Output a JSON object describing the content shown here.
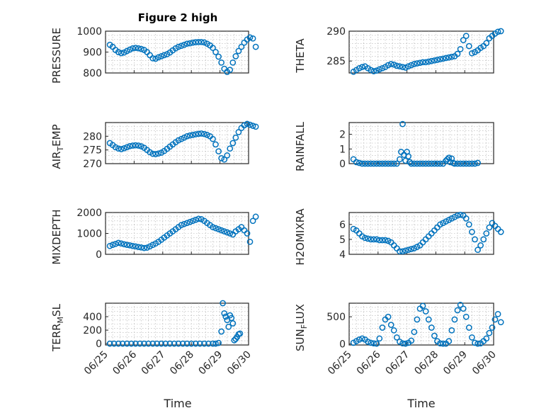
{
  "figure": {
    "title": "Figure 2 high",
    "marker_color": "#0072BD",
    "x_tick_labels": [
      "06/25",
      "06/26",
      "06/27",
      "06/28",
      "06/29",
      "06/30"
    ],
    "xlabel": "Time"
  },
  "chart_data": [
    {
      "type": "scatter",
      "title": "Figure 2 high",
      "ylabel": "PRESSURE",
      "ylim": [
        800,
        1000
      ],
      "yticks": [
        800,
        900,
        1000
      ],
      "xlim": [
        0,
        5
      ],
      "grid": true,
      "x": [
        0.15,
        0.25,
        0.35,
        0.45,
        0.55,
        0.65,
        0.75,
        0.85,
        0.95,
        1.05,
        1.15,
        1.25,
        1.35,
        1.45,
        1.55,
        1.65,
        1.75,
        1.85,
        1.95,
        2.05,
        2.15,
        2.25,
        2.35,
        2.45,
        2.55,
        2.65,
        2.75,
        2.85,
        2.95,
        3.05,
        3.15,
        3.25,
        3.35,
        3.45,
        3.55,
        3.65,
        3.75,
        3.85,
        3.95,
        4.05,
        4.15,
        4.25,
        4.35,
        4.45,
        4.55,
        4.65,
        4.75,
        4.85,
        4.95,
        5.05,
        5.15,
        5.25
      ],
      "y": [
        935,
        925,
        910,
        900,
        895,
        898,
        905,
        912,
        918,
        920,
        918,
        915,
        910,
        900,
        885,
        870,
        868,
        875,
        880,
        885,
        890,
        898,
        908,
        918,
        925,
        930,
        935,
        940,
        942,
        945,
        947,
        948,
        948,
        946,
        940,
        932,
        920,
        900,
        878,
        850,
        820,
        805,
        815,
        850,
        880,
        905,
        925,
        945,
        960,
        970,
        965,
        925
      ]
    },
    {
      "type": "scatter",
      "ylabel": "THETA",
      "ylim": [
        283,
        290
      ],
      "yticks": [
        285,
        290
      ],
      "xlim": [
        0,
        5
      ],
      "grid": true,
      "x": [
        0.15,
        0.25,
        0.35,
        0.45,
        0.55,
        0.65,
        0.75,
        0.85,
        0.95,
        1.05,
        1.15,
        1.25,
        1.35,
        1.45,
        1.55,
        1.65,
        1.75,
        1.85,
        1.95,
        2.05,
        2.15,
        2.25,
        2.35,
        2.45,
        2.55,
        2.65,
        2.75,
        2.85,
        2.95,
        3.05,
        3.15,
        3.25,
        3.35,
        3.45,
        3.55,
        3.65,
        3.75,
        3.85,
        3.95,
        4.05,
        4.15,
        4.25,
        4.35,
        4.45,
        4.55,
        4.65,
        4.75,
        4.85,
        4.95,
        5.05,
        5.15,
        5.25
      ],
      "y": [
        283.2,
        283.5,
        283.8,
        284.0,
        284.1,
        283.8,
        283.5,
        283.3,
        283.4,
        283.6,
        283.8,
        284.0,
        284.3,
        284.5,
        284.4,
        284.2,
        284.1,
        284.0,
        283.9,
        284.1,
        284.3,
        284.5,
        284.6,
        284.7,
        284.8,
        284.8,
        284.9,
        285.0,
        285.1,
        285.2,
        285.3,
        285.4,
        285.5,
        285.6,
        285.7,
        285.8,
        286.2,
        287.0,
        288.5,
        289.2,
        287.5,
        286.3,
        286.5,
        286.8,
        287.2,
        287.5,
        288.0,
        288.8,
        289.2,
        289.6,
        289.9,
        290.0
      ]
    },
    {
      "type": "scatter",
      "ylabel": "AIR_TEMP",
      "ylim": [
        270,
        285
      ],
      "yticks": [
        270,
        275,
        280
      ],
      "xlim": [
        0,
        5
      ],
      "grid": true,
      "x": [
        0.15,
        0.25,
        0.35,
        0.45,
        0.55,
        0.65,
        0.75,
        0.85,
        0.95,
        1.05,
        1.15,
        1.25,
        1.35,
        1.45,
        1.55,
        1.65,
        1.75,
        1.85,
        1.95,
        2.05,
        2.15,
        2.25,
        2.35,
        2.45,
        2.55,
        2.65,
        2.75,
        2.85,
        2.95,
        3.05,
        3.15,
        3.25,
        3.35,
        3.45,
        3.55,
        3.65,
        3.75,
        3.85,
        3.95,
        4.05,
        4.15,
        4.25,
        4.35,
        4.45,
        4.55,
        4.65,
        4.75,
        4.85,
        4.95,
        5.05,
        5.15,
        5.25
      ],
      "y": [
        277.5,
        276.8,
        276.0,
        275.5,
        275.3,
        275.6,
        276.0,
        276.4,
        276.6,
        276.7,
        276.6,
        276.3,
        275.8,
        275.0,
        274.2,
        273.6,
        273.5,
        273.7,
        274.0,
        274.6,
        275.4,
        276.2,
        277.0,
        277.8,
        278.5,
        279.0,
        279.5,
        280.0,
        280.3,
        280.5,
        280.7,
        280.9,
        281.0,
        280.8,
        280.5,
        280.0,
        279.0,
        277.0,
        274.5,
        272.0,
        271.5,
        273.0,
        275.5,
        277.5,
        279.5,
        281.5,
        283.0,
        284.0,
        284.5,
        284.2,
        283.8,
        283.5
      ]
    },
    {
      "type": "scatter",
      "ylabel": "RAINFALL",
      "ylim": [
        0,
        2.8
      ],
      "yticks": [
        0,
        1,
        2
      ],
      "xlim": [
        0,
        5
      ],
      "grid": true,
      "x": [
        0.15,
        0.25,
        0.35,
        0.45,
        0.55,
        0.65,
        0.75,
        0.85,
        0.95,
        1.05,
        1.15,
        1.25,
        1.35,
        1.45,
        1.55,
        1.65,
        1.75,
        1.8,
        1.85,
        1.9,
        1.95,
        2.0,
        2.05,
        2.1,
        2.15,
        2.25,
        2.35,
        2.45,
        2.55,
        2.65,
        2.75,
        2.85,
        2.95,
        3.05,
        3.15,
        3.25,
        3.35,
        3.4,
        3.45,
        3.5,
        3.55,
        3.6,
        3.65,
        3.75,
        3.85,
        3.95,
        4.05,
        4.15,
        4.25,
        4.35,
        4.45
      ],
      "y": [
        0.3,
        0.1,
        0.05,
        0,
        0,
        0,
        0,
        0,
        0,
        0,
        0,
        0,
        0,
        0,
        0,
        0,
        0.3,
        0.8,
        2.7,
        0.6,
        0.2,
        0.8,
        0.5,
        0.1,
        0,
        0,
        0,
        0,
        0,
        0,
        0,
        0,
        0,
        0,
        0,
        0,
        0.2,
        0.3,
        0.4,
        0.1,
        0.35,
        0.05,
        0,
        0,
        0,
        0,
        0,
        0,
        0,
        0,
        0.05
      ]
    },
    {
      "type": "scatter",
      "ylabel": "MIXDEPTH",
      "ylim": [
        0,
        2000
      ],
      "yticks": [
        0,
        1000,
        2000
      ],
      "xlim": [
        0,
        5
      ],
      "grid": true,
      "x": [
        0.15,
        0.25,
        0.35,
        0.45,
        0.55,
        0.65,
        0.75,
        0.85,
        0.95,
        1.05,
        1.15,
        1.25,
        1.35,
        1.45,
        1.55,
        1.65,
        1.75,
        1.85,
        1.95,
        2.05,
        2.15,
        2.25,
        2.35,
        2.45,
        2.55,
        2.65,
        2.75,
        2.85,
        2.95,
        3.05,
        3.15,
        3.25,
        3.35,
        3.45,
        3.55,
        3.65,
        3.75,
        3.85,
        3.95,
        4.05,
        4.15,
        4.25,
        4.35,
        4.45,
        4.55,
        4.65,
        4.75,
        4.85,
        4.95,
        5.05,
        5.15,
        5.25
      ],
      "y": [
        400,
        450,
        500,
        550,
        520,
        480,
        450,
        430,
        400,
        380,
        350,
        330,
        300,
        320,
        380,
        450,
        520,
        600,
        700,
        800,
        900,
        1000,
        1100,
        1200,
        1300,
        1400,
        1450,
        1500,
        1550,
        1600,
        1650,
        1700,
        1680,
        1600,
        1500,
        1400,
        1300,
        1250,
        1200,
        1150,
        1100,
        1050,
        1000,
        950,
        1100,
        1200,
        1300,
        1150,
        1000,
        600,
        1600,
        1800
      ]
    },
    {
      "type": "scatter",
      "ylabel": "H2OMIXRA",
      "ylim": [
        4,
        6.8
      ],
      "yticks": [
        4,
        5,
        6
      ],
      "xlim": [
        0,
        5
      ],
      "grid": true,
      "x": [
        0.15,
        0.25,
        0.35,
        0.45,
        0.55,
        0.65,
        0.75,
        0.85,
        0.95,
        1.05,
        1.15,
        1.25,
        1.35,
        1.45,
        1.55,
        1.65,
        1.75,
        1.85,
        1.95,
        2.05,
        2.15,
        2.25,
        2.35,
        2.45,
        2.55,
        2.65,
        2.75,
        2.85,
        2.95,
        3.05,
        3.15,
        3.25,
        3.35,
        3.45,
        3.55,
        3.65,
        3.75,
        3.85,
        3.95,
        4.05,
        4.15,
        4.25,
        4.35,
        4.45,
        4.55,
        4.65,
        4.75,
        4.85,
        4.95,
        5.05,
        5.15,
        5.25
      ],
      "y": [
        5.7,
        5.6,
        5.4,
        5.2,
        5.1,
        5.05,
        5.0,
        5.0,
        5.0,
        4.95,
        4.95,
        4.95,
        4.9,
        4.8,
        4.6,
        4.4,
        4.2,
        4.2,
        4.25,
        4.3,
        4.35,
        4.4,
        4.5,
        4.6,
        4.8,
        5.0,
        5.2,
        5.4,
        5.6,
        5.8,
        6.0,
        6.1,
        6.2,
        6.3,
        6.4,
        6.5,
        6.6,
        6.65,
        6.6,
        6.4,
        6.0,
        5.5,
        5.0,
        4.3,
        4.6,
        5.0,
        5.4,
        5.8,
        6.1,
        5.9,
        5.7,
        5.5
      ]
    },
    {
      "type": "scatter",
      "ylabel": "TERR_MSL",
      "ylim": [
        -20,
        600
      ],
      "yticks": [
        0,
        200,
        400
      ],
      "xlim": [
        0,
        5
      ],
      "grid": true,
      "x": [
        0.15,
        0.3,
        0.45,
        0.6,
        0.75,
        0.9,
        1.05,
        1.2,
        1.35,
        1.5,
        1.65,
        1.8,
        1.95,
        2.1,
        2.25,
        2.4,
        2.55,
        2.7,
        2.85,
        3.0,
        3.15,
        3.3,
        3.45,
        3.6,
        3.75,
        3.85,
        3.95,
        4.05,
        4.1,
        4.15,
        4.2,
        4.25,
        4.3,
        4.35,
        4.4,
        4.45,
        4.5,
        4.55,
        4.6,
        4.65,
        4.7
      ],
      "y": [
        0,
        0,
        0,
        0,
        0,
        0,
        0,
        0,
        0,
        0,
        0,
        0,
        0,
        0,
        0,
        0,
        0,
        0,
        0,
        0,
        0,
        0,
        0,
        0,
        0,
        0,
        10,
        180,
        600,
        450,
        400,
        350,
        250,
        420,
        380,
        300,
        50,
        70,
        100,
        140,
        150
      ]
    },
    {
      "type": "scatter",
      "ylabel": "SUN_FLUX",
      "ylim": [
        -20,
        750
      ],
      "yticks": [
        0,
        500
      ],
      "xlim": [
        0,
        5
      ],
      "grid": true,
      "x": [
        0.15,
        0.25,
        0.35,
        0.45,
        0.55,
        0.65,
        0.75,
        0.85,
        0.95,
        1.05,
        1.15,
        1.25,
        1.35,
        1.45,
        1.55,
        1.65,
        1.75,
        1.85,
        1.95,
        2.05,
        2.15,
        2.25,
        2.35,
        2.45,
        2.55,
        2.65,
        2.75,
        2.85,
        2.95,
        3.05,
        3.15,
        3.25,
        3.35,
        3.45,
        3.55,
        3.65,
        3.75,
        3.85,
        3.95,
        4.05,
        4.15,
        4.25,
        4.35,
        4.45,
        4.55,
        4.65,
        4.75,
        4.85,
        4.95,
        5.05,
        5.15,
        5.25
      ],
      "y": [
        20,
        50,
        80,
        100,
        80,
        40,
        20,
        10,
        5,
        100,
        300,
        450,
        500,
        350,
        250,
        120,
        40,
        10,
        5,
        20,
        60,
        220,
        450,
        650,
        700,
        600,
        450,
        300,
        150,
        50,
        10,
        5,
        5,
        50,
        250,
        450,
        620,
        720,
        650,
        500,
        300,
        120,
        20,
        5,
        10,
        50,
        100,
        200,
        300,
        450,
        550,
        400
      ]
    }
  ]
}
